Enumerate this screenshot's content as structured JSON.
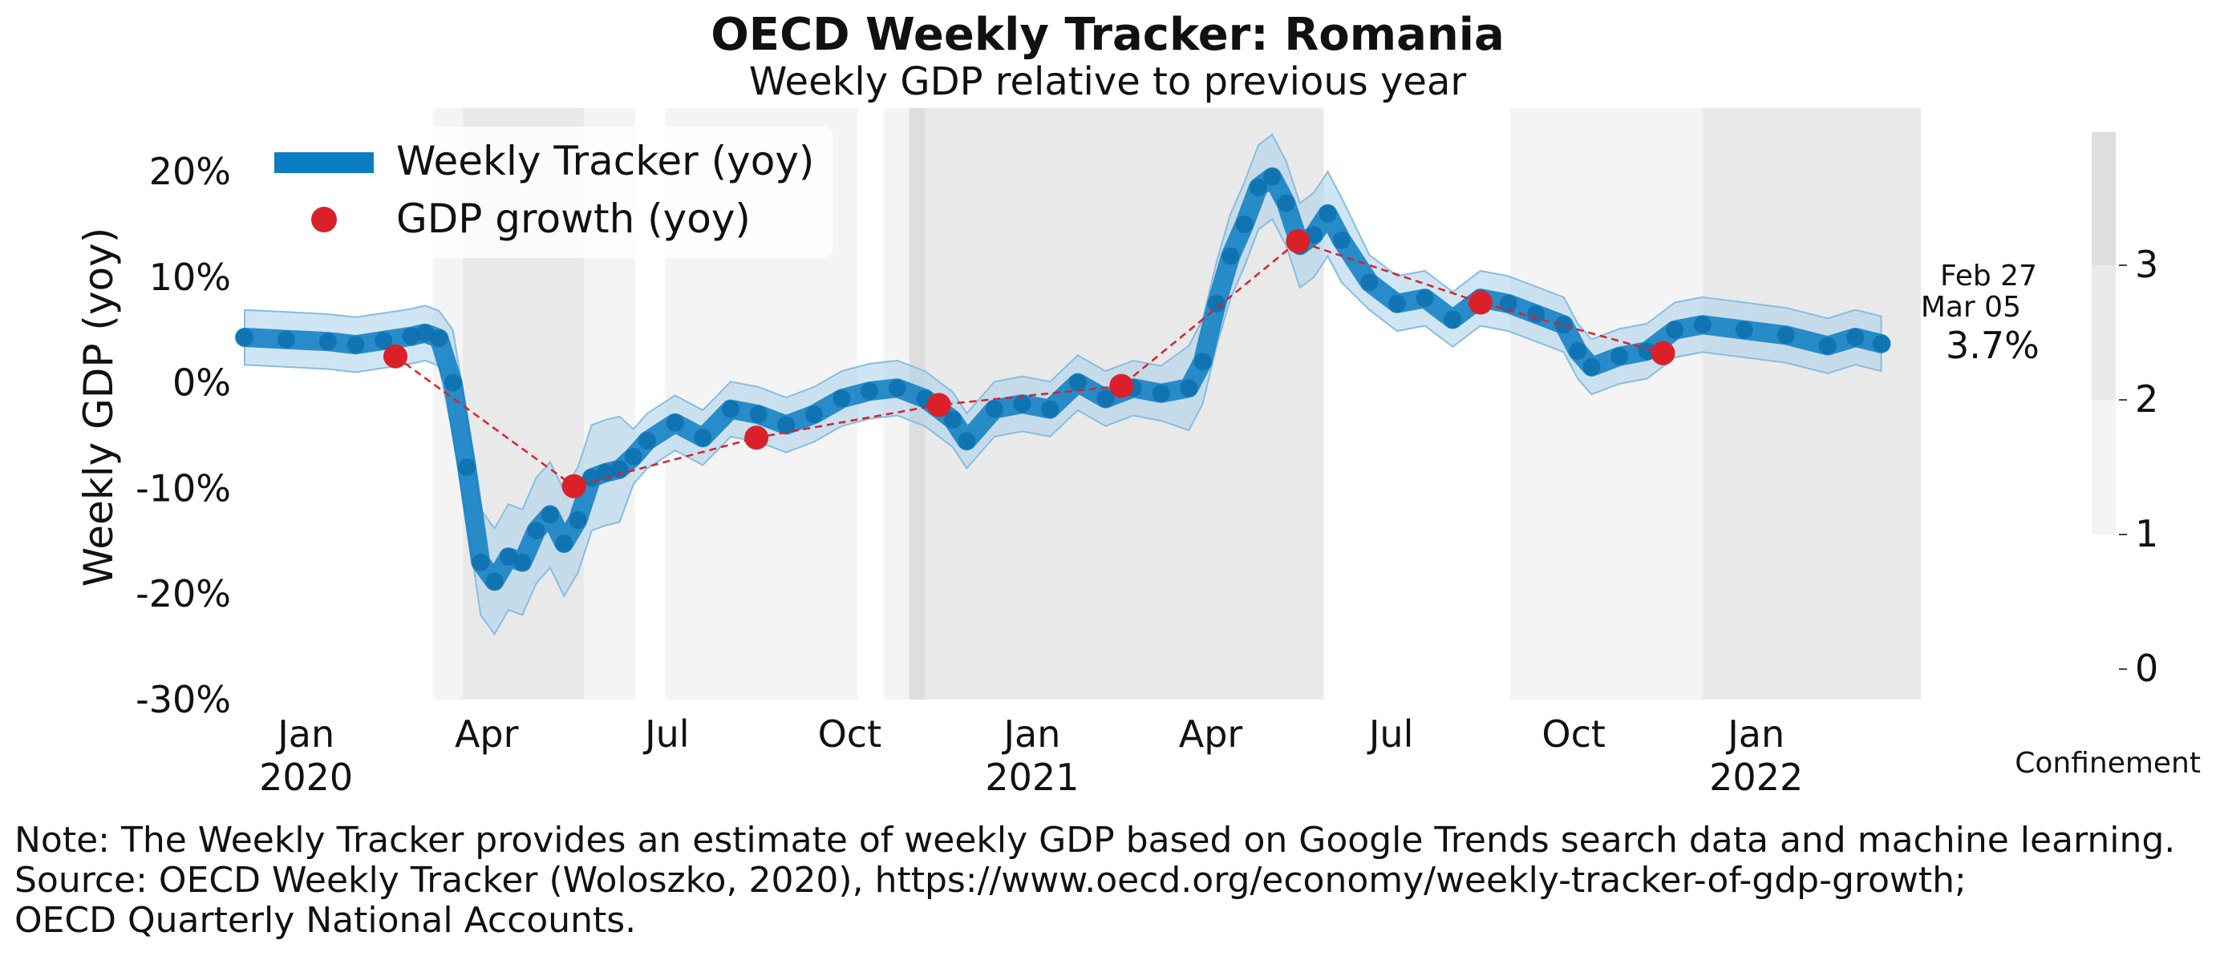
{
  "chart_data": {
    "type": "line",
    "title": "OECD Weekly Tracker: Romania",
    "subtitle": "Weekly GDP relative to previous year",
    "ylabel": "Weekly GDP (yoy)",
    "ylim": [
      -30,
      26
    ],
    "yticks": [
      {
        "value": 20,
        "label": "20%"
      },
      {
        "value": 10,
        "label": "10%"
      },
      {
        "value": 0,
        "label": "0%"
      },
      {
        "value": -10,
        "label": "-10%"
      },
      {
        "value": -20,
        "label": "-20%"
      },
      {
        "value": -30,
        "label": "-30%"
      }
    ],
    "xlim": [
      "2019-12-01",
      "2022-03-25"
    ],
    "xticks": [
      {
        "date": "2020-01-01",
        "month": "Jan",
        "year": "2020"
      },
      {
        "date": "2020-04-01",
        "month": "Apr",
        "year": ""
      },
      {
        "date": "2020-07-01",
        "month": "Jul",
        "year": ""
      },
      {
        "date": "2020-10-01",
        "month": "Oct",
        "year": ""
      },
      {
        "date": "2021-01-01",
        "month": "Jan",
        "year": "2021"
      },
      {
        "date": "2021-04-01",
        "month": "Apr",
        "year": ""
      },
      {
        "date": "2021-07-01",
        "month": "Jul",
        "year": ""
      },
      {
        "date": "2021-10-01",
        "month": "Oct",
        "year": ""
      },
      {
        "date": "2022-01-01",
        "month": "Jan",
        "year": "2022"
      }
    ],
    "legend": {
      "position": "top-left",
      "tracker_label": "Weekly Tracker (yoy)",
      "gdp_label": "GDP growth (yoy)"
    },
    "colors": {
      "tracker": "#0b7dc2",
      "band": "#a9cfe9",
      "band_edge": "#86bde2",
      "gdp": "#da2129",
      "confinement_1": "#f4f4f4",
      "confinement_2": "#e9e9e9",
      "confinement_3": "#dedede"
    },
    "confinement": {
      "label": "Confinement",
      "scale_ticks": [
        {
          "value": 0,
          "label": "0"
        },
        {
          "value": 1,
          "label": "1"
        },
        {
          "value": 2,
          "label": "2"
        },
        {
          "value": 3,
          "label": "3"
        }
      ],
      "periods": [
        {
          "start": "2020-03-05",
          "end": "2020-06-15",
          "level": 1
        },
        {
          "start": "2020-03-20",
          "end": "2020-05-20",
          "level": 2
        },
        {
          "start": "2020-06-30",
          "end": "2020-10-05",
          "level": 1
        },
        {
          "start": "2020-10-18",
          "end": "2021-05-28",
          "level": 1
        },
        {
          "start": "2020-10-31",
          "end": "2021-05-28",
          "level": 2
        },
        {
          "start": "2020-10-31",
          "end": "2020-11-08",
          "level": 3
        },
        {
          "start": "2021-08-30",
          "end": "2022-03-25",
          "level": 1
        },
        {
          "start": "2021-12-05",
          "end": "2022-03-25",
          "level": 2
        }
      ]
    },
    "end_labels": {
      "date_line_1": "Feb 27",
      "date_line_2": "Mar 05",
      "value_label": "3.7%"
    },
    "series": [
      {
        "name": "Weekly Tracker (yoy)",
        "points": [
          [
            "2019-12-01",
            4.3
          ],
          [
            "2019-12-22",
            4.1
          ],
          [
            "2020-01-12",
            3.9
          ],
          [
            "2020-01-26",
            3.6
          ],
          [
            "2020-02-09",
            4.0
          ],
          [
            "2020-02-23",
            4.4
          ],
          [
            "2020-03-01",
            4.7
          ],
          [
            "2020-03-08",
            4.2
          ],
          [
            "2020-03-15",
            0.0
          ],
          [
            "2020-03-22",
            -8.0
          ],
          [
            "2020-03-29",
            -17.0
          ],
          [
            "2020-04-05",
            -18.8
          ],
          [
            "2020-04-12",
            -16.5
          ],
          [
            "2020-04-19",
            -17.0
          ],
          [
            "2020-04-26",
            -14.0
          ],
          [
            "2020-05-03",
            -12.5
          ],
          [
            "2020-05-10",
            -15.2
          ],
          [
            "2020-05-17",
            -13.0
          ],
          [
            "2020-05-24",
            -9.0
          ],
          [
            "2020-05-31",
            -8.5
          ],
          [
            "2020-06-07",
            -8.2
          ],
          [
            "2020-06-14",
            -7.0
          ],
          [
            "2020-06-21",
            -5.5
          ],
          [
            "2020-07-05",
            -3.8
          ],
          [
            "2020-07-19",
            -5.2
          ],
          [
            "2020-08-02",
            -2.5
          ],
          [
            "2020-08-16",
            -3.0
          ],
          [
            "2020-08-30",
            -4.0
          ],
          [
            "2020-09-13",
            -3.0
          ],
          [
            "2020-09-27",
            -1.5
          ],
          [
            "2020-10-11",
            -0.8
          ],
          [
            "2020-10-25",
            -0.5
          ],
          [
            "2020-11-08",
            -1.5
          ],
          [
            "2020-11-22",
            -3.5
          ],
          [
            "2020-11-29",
            -5.5
          ],
          [
            "2020-12-13",
            -2.5
          ],
          [
            "2020-12-27",
            -2.0
          ],
          [
            "2021-01-10",
            -2.5
          ],
          [
            "2021-01-24",
            0.0
          ],
          [
            "2021-02-07",
            -1.5
          ],
          [
            "2021-02-21",
            -0.5
          ],
          [
            "2021-03-07",
            -1.0
          ],
          [
            "2021-03-21",
            -0.5
          ],
          [
            "2021-03-28",
            2.0
          ],
          [
            "2021-04-04",
            7.5
          ],
          [
            "2021-04-11",
            12.0
          ],
          [
            "2021-04-18",
            15.0
          ],
          [
            "2021-04-25",
            18.5
          ],
          [
            "2021-05-02",
            19.5
          ],
          [
            "2021-05-09",
            17.0
          ],
          [
            "2021-05-16",
            13.0
          ],
          [
            "2021-05-23",
            14.0
          ],
          [
            "2021-05-30",
            16.0
          ],
          [
            "2021-06-06",
            13.5
          ],
          [
            "2021-06-20",
            9.5
          ],
          [
            "2021-07-04",
            7.5
          ],
          [
            "2021-07-18",
            8.0
          ],
          [
            "2021-08-01",
            6.0
          ],
          [
            "2021-08-15",
            8.0
          ],
          [
            "2021-08-29",
            7.5
          ],
          [
            "2021-09-12",
            6.5
          ],
          [
            "2021-09-26",
            5.5
          ],
          [
            "2021-10-03",
            3.0
          ],
          [
            "2021-10-10",
            1.5
          ],
          [
            "2021-10-24",
            2.5
          ],
          [
            "2021-11-07",
            3.0
          ],
          [
            "2021-11-21",
            5.0
          ],
          [
            "2021-12-05",
            5.5
          ],
          [
            "2021-12-26",
            5.0
          ],
          [
            "2022-01-16",
            4.5
          ],
          [
            "2022-02-06",
            3.5
          ],
          [
            "2022-02-20",
            4.3
          ],
          [
            "2022-03-05",
            3.7
          ]
        ]
      },
      {
        "name": "GDP growth (yoy)",
        "points": [
          [
            "2020-02-15",
            2.5
          ],
          [
            "2020-05-15",
            -9.8
          ],
          [
            "2020-08-15",
            -5.2
          ],
          [
            "2020-11-15",
            -2.1
          ],
          [
            "2021-02-15",
            -0.3
          ],
          [
            "2021-05-15",
            13.4
          ],
          [
            "2021-08-15",
            7.6
          ],
          [
            "2021-11-15",
            2.8
          ]
        ]
      }
    ]
  },
  "footnotes": {
    "line1": "Note: The Weekly Tracker provides an estimate of weekly GDP based on Google Trends search data and machine learning.",
    "line2": "Source: OECD Weekly Tracker (Woloszko, 2020), https://www.oecd.org/economy/weekly-tracker-of-gdp-growth;",
    "line3": "OECD Quarterly National Accounts."
  }
}
